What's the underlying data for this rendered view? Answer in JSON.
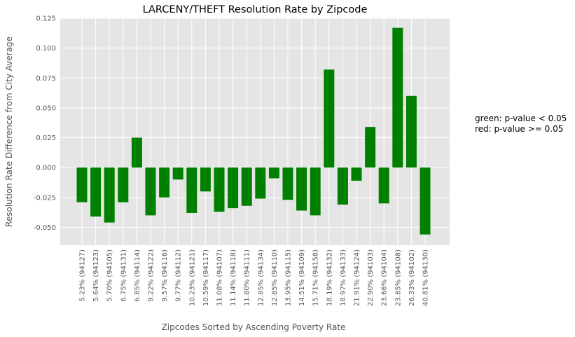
{
  "chart_data": {
    "type": "bar",
    "title": "LARCENY/THEFT Resolution Rate by Zipcode",
    "xlabel": "Zipcodes Sorted by Ascending Poverty Rate",
    "ylabel": "Resolution Rate Difference from City Average",
    "ylim": [
      -0.065,
      0.125
    ],
    "yticks": [
      "-0.050",
      "-0.025",
      "0.000",
      "0.025",
      "0.050",
      "0.075",
      "0.100",
      "0.125"
    ],
    "ytick_values": [
      -0.05,
      -0.025,
      0.0,
      0.025,
      0.05,
      0.075,
      0.1,
      0.125
    ],
    "grid": true,
    "categories": [
      "5.23% (94127)",
      "5.64% (94123)",
      "5.70% (94105)",
      "6.75% (94131)",
      "6.85% (94114)",
      "9.22% (94122)",
      "9.57% (94116)",
      "9.77% (94112)",
      "10.23% (94121)",
      "10.59% (94117)",
      "11.08% (94107)",
      "11.14% (94118)",
      "11.80% (94111)",
      "12.85% (94134)",
      "12.85% (94110)",
      "13.95% (94115)",
      "14.51% (94109)",
      "15.71% (94158)",
      "18.19% (94132)",
      "18.97% (94133)",
      "21.91% (94124)",
      "22.90% (94103)",
      "23.66% (94104)",
      "23.85% (94108)",
      "26.33% (94102)",
      "40.81% (94130)"
    ],
    "values": [
      -0.029,
      -0.041,
      -0.046,
      -0.029,
      0.025,
      -0.04,
      -0.025,
      -0.01,
      -0.038,
      -0.02,
      -0.037,
      -0.034,
      -0.032,
      -0.026,
      -0.009,
      -0.027,
      -0.036,
      -0.04,
      0.082,
      -0.031,
      -0.011,
      0.034,
      -0.03,
      0.117,
      0.06,
      -0.056
    ],
    "bar_color": "#008000",
    "colors": {
      "plot_bg": "#e5e5e5",
      "grid": "#ffffff",
      "text": "#555555"
    }
  },
  "legend_note": {
    "line1": "green: p-value < 0.05",
    "line2": "red: p-value >= 0.05"
  }
}
